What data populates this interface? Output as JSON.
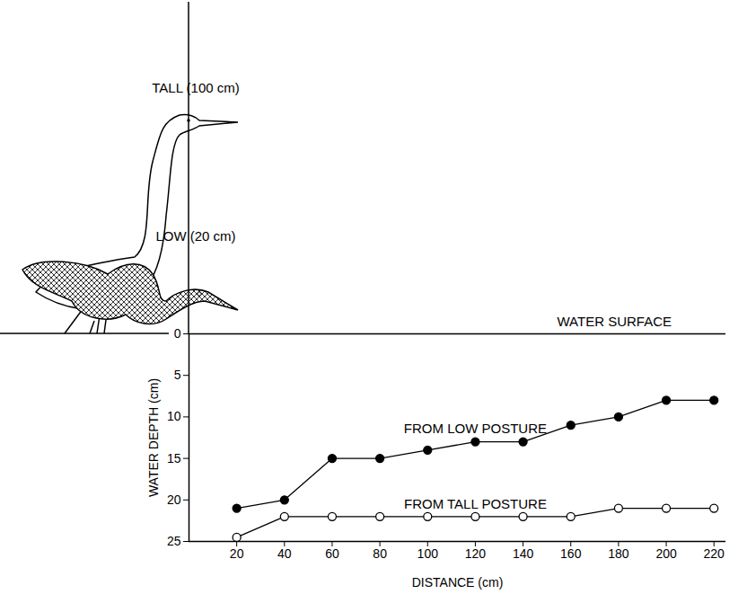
{
  "chart_data": {
    "type": "line",
    "x_label": "DISTANCE (cm)",
    "y_label": "WATER DEPTH (cm)",
    "x": [
      20,
      40,
      60,
      80,
      100,
      120,
      140,
      160,
      180,
      200,
      220
    ],
    "series": [
      {
        "name": "FROM LOW POSTURE",
        "color": "black",
        "marker": "circle",
        "values": [
          21,
          20,
          15,
          15,
          14,
          13,
          13,
          11,
          10,
          8,
          8
        ]
      },
      {
        "name": "FROM TALL POSTURE",
        "color": "black",
        "marker": "open_circle",
        "values": [
          24.5,
          22,
          22,
          22,
          22,
          22,
          22,
          22,
          21,
          21,
          21
        ]
      }
    ],
    "xlim": [
      0,
      225
    ],
    "ylim": [
      0,
      25
    ],
    "xticks": [
      20,
      40,
      60,
      80,
      100,
      120,
      140,
      160,
      180,
      200,
      220
    ],
    "yticks": [
      0,
      5,
      10,
      15,
      20,
      25
    ],
    "grid": false,
    "annotations": [
      "TALL (100 cm)",
      "LOW (20 cm)",
      "WATER SURFACE"
    ]
  }
}
